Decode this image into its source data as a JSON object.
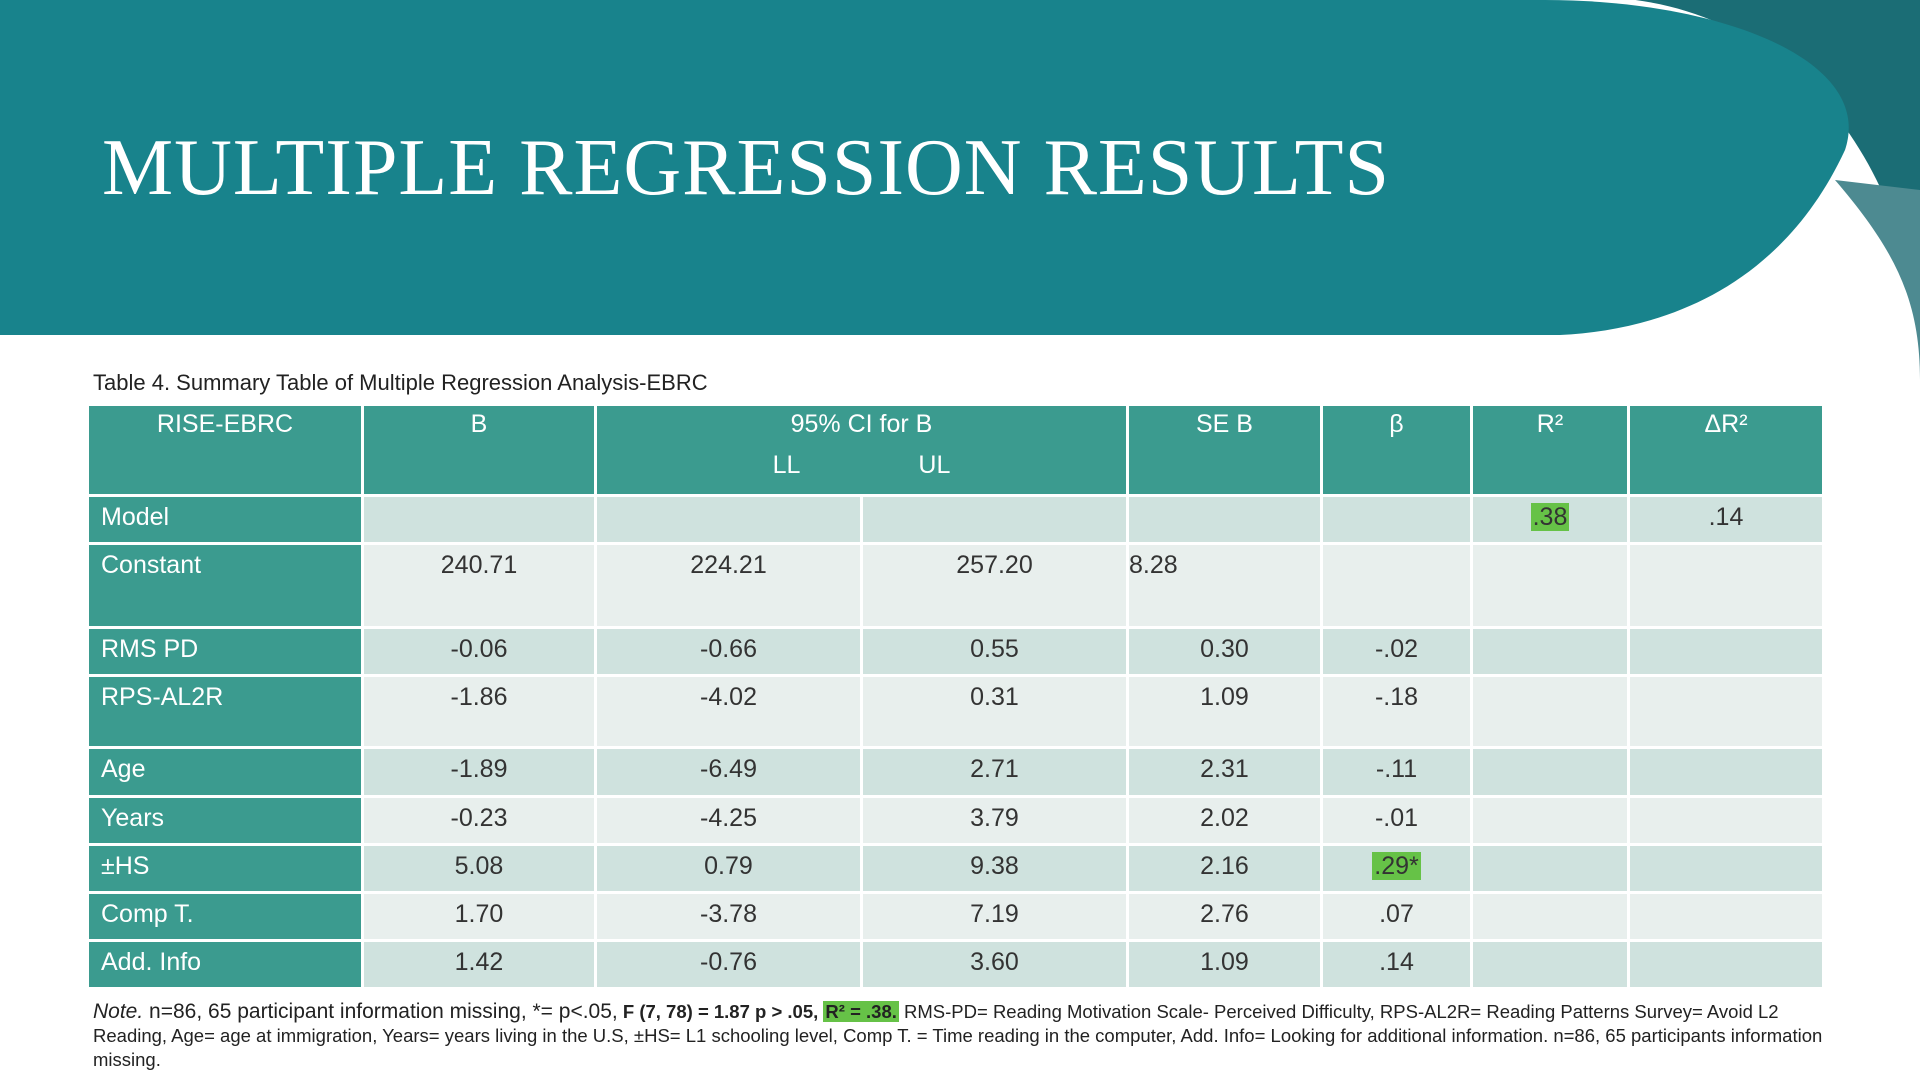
{
  "slide": {
    "title": "MULTIPLE REGRESSION RESULTS"
  },
  "table": {
    "caption": "Table 4. Summary Table of Multiple Regression Analysis-EBRC",
    "headers": {
      "rise": "RISE-EBRC",
      "b": "B",
      "ci": "95% CI for B",
      "ll": "LL",
      "ul": "UL",
      "seb": "SE B",
      "beta": "β",
      "r2": "R²",
      "dr2": "ΔR²"
    },
    "rows": [
      {
        "label": "Model",
        "b": "",
        "ll": "",
        "ul": "",
        "seb": "",
        "beta": "",
        "r2": ".38",
        "dr2": ".14"
      },
      {
        "label": "Constant",
        "b": "240.71",
        "ll": "224.21",
        "ul": "257.20",
        "seb": "8.28",
        "beta": "",
        "r2": "",
        "dr2": ""
      },
      {
        "label": "RMS PD",
        "b": "-0.06",
        "ll": "-0.66",
        "ul": "0.55",
        "seb": "0.30",
        "beta": "-.02",
        "r2": "",
        "dr2": ""
      },
      {
        "label": "RPS-AL2R",
        "b": "-1.86",
        "ll": "-4.02",
        "ul": "0.31",
        "seb": "1.09",
        "beta": "-.18",
        "r2": "",
        "dr2": ""
      },
      {
        "label": "Age",
        "b": "-1.89",
        "ll": "-6.49",
        "ul": "2.71",
        "seb": "2.31",
        "beta": "-.11",
        "r2": "",
        "dr2": ""
      },
      {
        "label": "Years",
        "b": "-0.23",
        "ll": "-4.25",
        "ul": "3.79",
        "seb": "2.02",
        "beta": "-.01",
        "r2": "",
        "dr2": ""
      },
      {
        "label": "±HS",
        "b": "5.08",
        "ll": "0.79",
        "ul": "9.38",
        "seb": "2.16",
        "beta": ".29*",
        "r2": "",
        "dr2": ""
      },
      {
        "label": "Comp T.",
        "b": "1.70",
        "ll": "-3.78",
        "ul": "7.19",
        "seb": "2.76",
        "beta": ".07",
        "r2": "",
        "dr2": ""
      },
      {
        "label": "Add. Info",
        "b": "1.42",
        "ll": "-0.76",
        "ul": "3.60",
        "seb": "1.09",
        "beta": ".14",
        "r2": "",
        "dr2": ""
      }
    ]
  },
  "note": {
    "label": "Note.",
    "lead": "n=86, 65 participant information missing, *= p<.05,",
    "stat": "F (7, 78) = 1.87 p > .05,",
    "r2": "R² = .38.",
    "rest": "RMS-PD= Reading Motivation Scale- Perceived Difficulty, RPS-AL2R= Reading Patterns Survey= Avoid L2 Reading, Age= age at immigration, Years= years living in the U.S, ±HS= L1 schooling level, Comp T. = Time reading in the computer, Add. Info= Looking for additional information. n=86, 65 participants information missing."
  },
  "colors": {
    "banner": "#18838c",
    "header_cell": "#3b9b8f",
    "row_alt": "#cfe2de",
    "row_norm": "#e8efed",
    "highlight": "#66c247"
  }
}
